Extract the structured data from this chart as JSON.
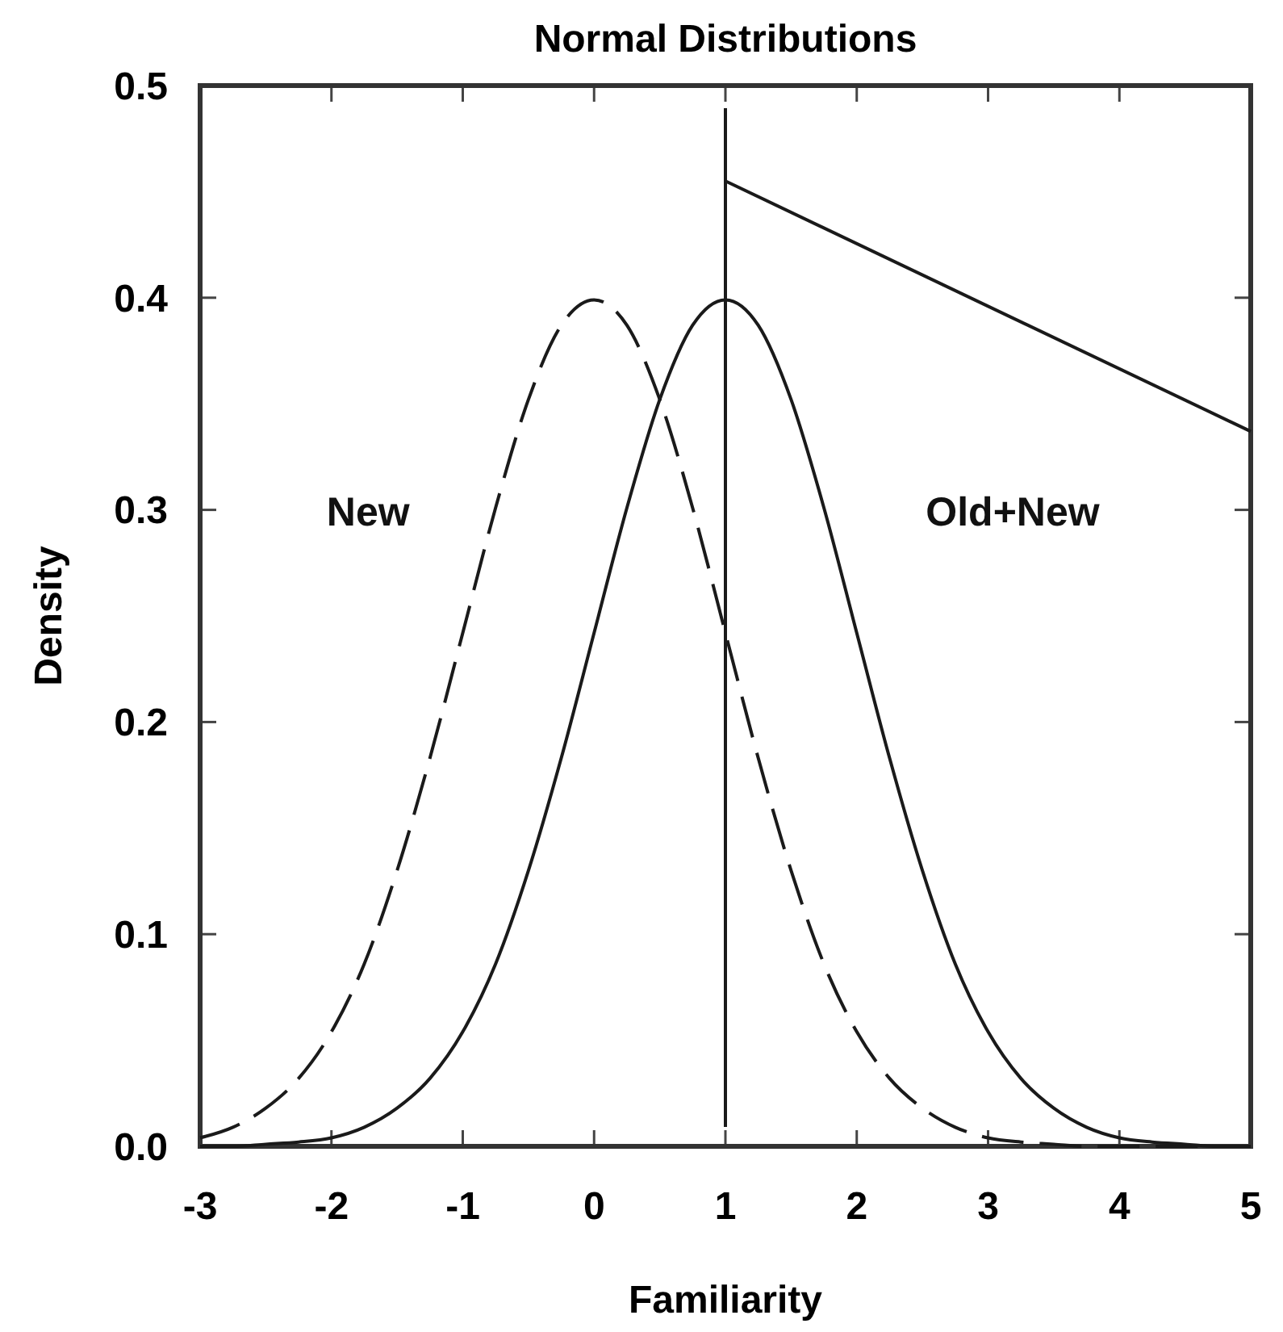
{
  "chart_data": {
    "type": "line",
    "title": "Normal Distributions",
    "xlabel": "Familiarity",
    "ylabel": "Density",
    "xlim": [
      -3,
      5
    ],
    "ylim": [
      0,
      0.5
    ],
    "xticks": [
      -3,
      -2,
      -1,
      0,
      1,
      2,
      3,
      4,
      5
    ],
    "yticks": [
      {
        "value": 0,
        "label": "0.0"
      },
      0.1,
      0.2,
      0.3,
      0.4,
      0.5
    ],
    "marker": "none",
    "x": [
      -3,
      -2.75,
      -2.5,
      -2.25,
      -2,
      -1.75,
      -1.5,
      -1.25,
      -1,
      -0.75,
      -0.5,
      -0.25,
      0,
      0.25,
      0.5,
      0.75,
      1,
      1.25,
      1.5,
      1.75,
      2,
      2.25,
      2.5,
      2.75,
      3,
      3.25,
      3.5,
      3.75,
      4,
      4.25,
      4.5,
      4.75,
      5
    ],
    "series": [
      {
        "name": "New",
        "color": "#1a1a1a",
        "line_style": "dashed",
        "values": [
          0.004,
          0.009,
          0.018,
          0.032,
          0.054,
          0.086,
          0.13,
          0.183,
          0.242,
          0.301,
          0.352,
          0.387,
          0.399,
          0.387,
          0.352,
          0.301,
          0.242,
          0.183,
          0.13,
          0.086,
          0.054,
          0.032,
          0.018,
          0.009,
          0.004,
          0.002,
          0.001,
          0,
          0,
          0,
          0,
          0,
          0
        ]
      },
      {
        "name": "Old+New",
        "color": "#1a1a1a",
        "line_style": "solid",
        "values": [
          0,
          0,
          0.001,
          0.002,
          0.004,
          0.009,
          0.018,
          0.032,
          0.054,
          0.086,
          0.13,
          0.183,
          0.242,
          0.301,
          0.352,
          0.387,
          0.399,
          0.387,
          0.352,
          0.301,
          0.242,
          0.183,
          0.13,
          0.086,
          0.054,
          0.032,
          0.018,
          0.009,
          0.004,
          0.002,
          0.001,
          0,
          0
        ]
      },
      {
        "color": "#1a1a1a",
        "line_style": "solid",
        "x": [
          1,
          5
        ],
        "values": [
          0.455,
          0.337
        ]
      }
    ],
    "ref_lines": [
      {
        "axis": "x",
        "value": 1,
        "color": "#1a1a1a"
      }
    ]
  }
}
